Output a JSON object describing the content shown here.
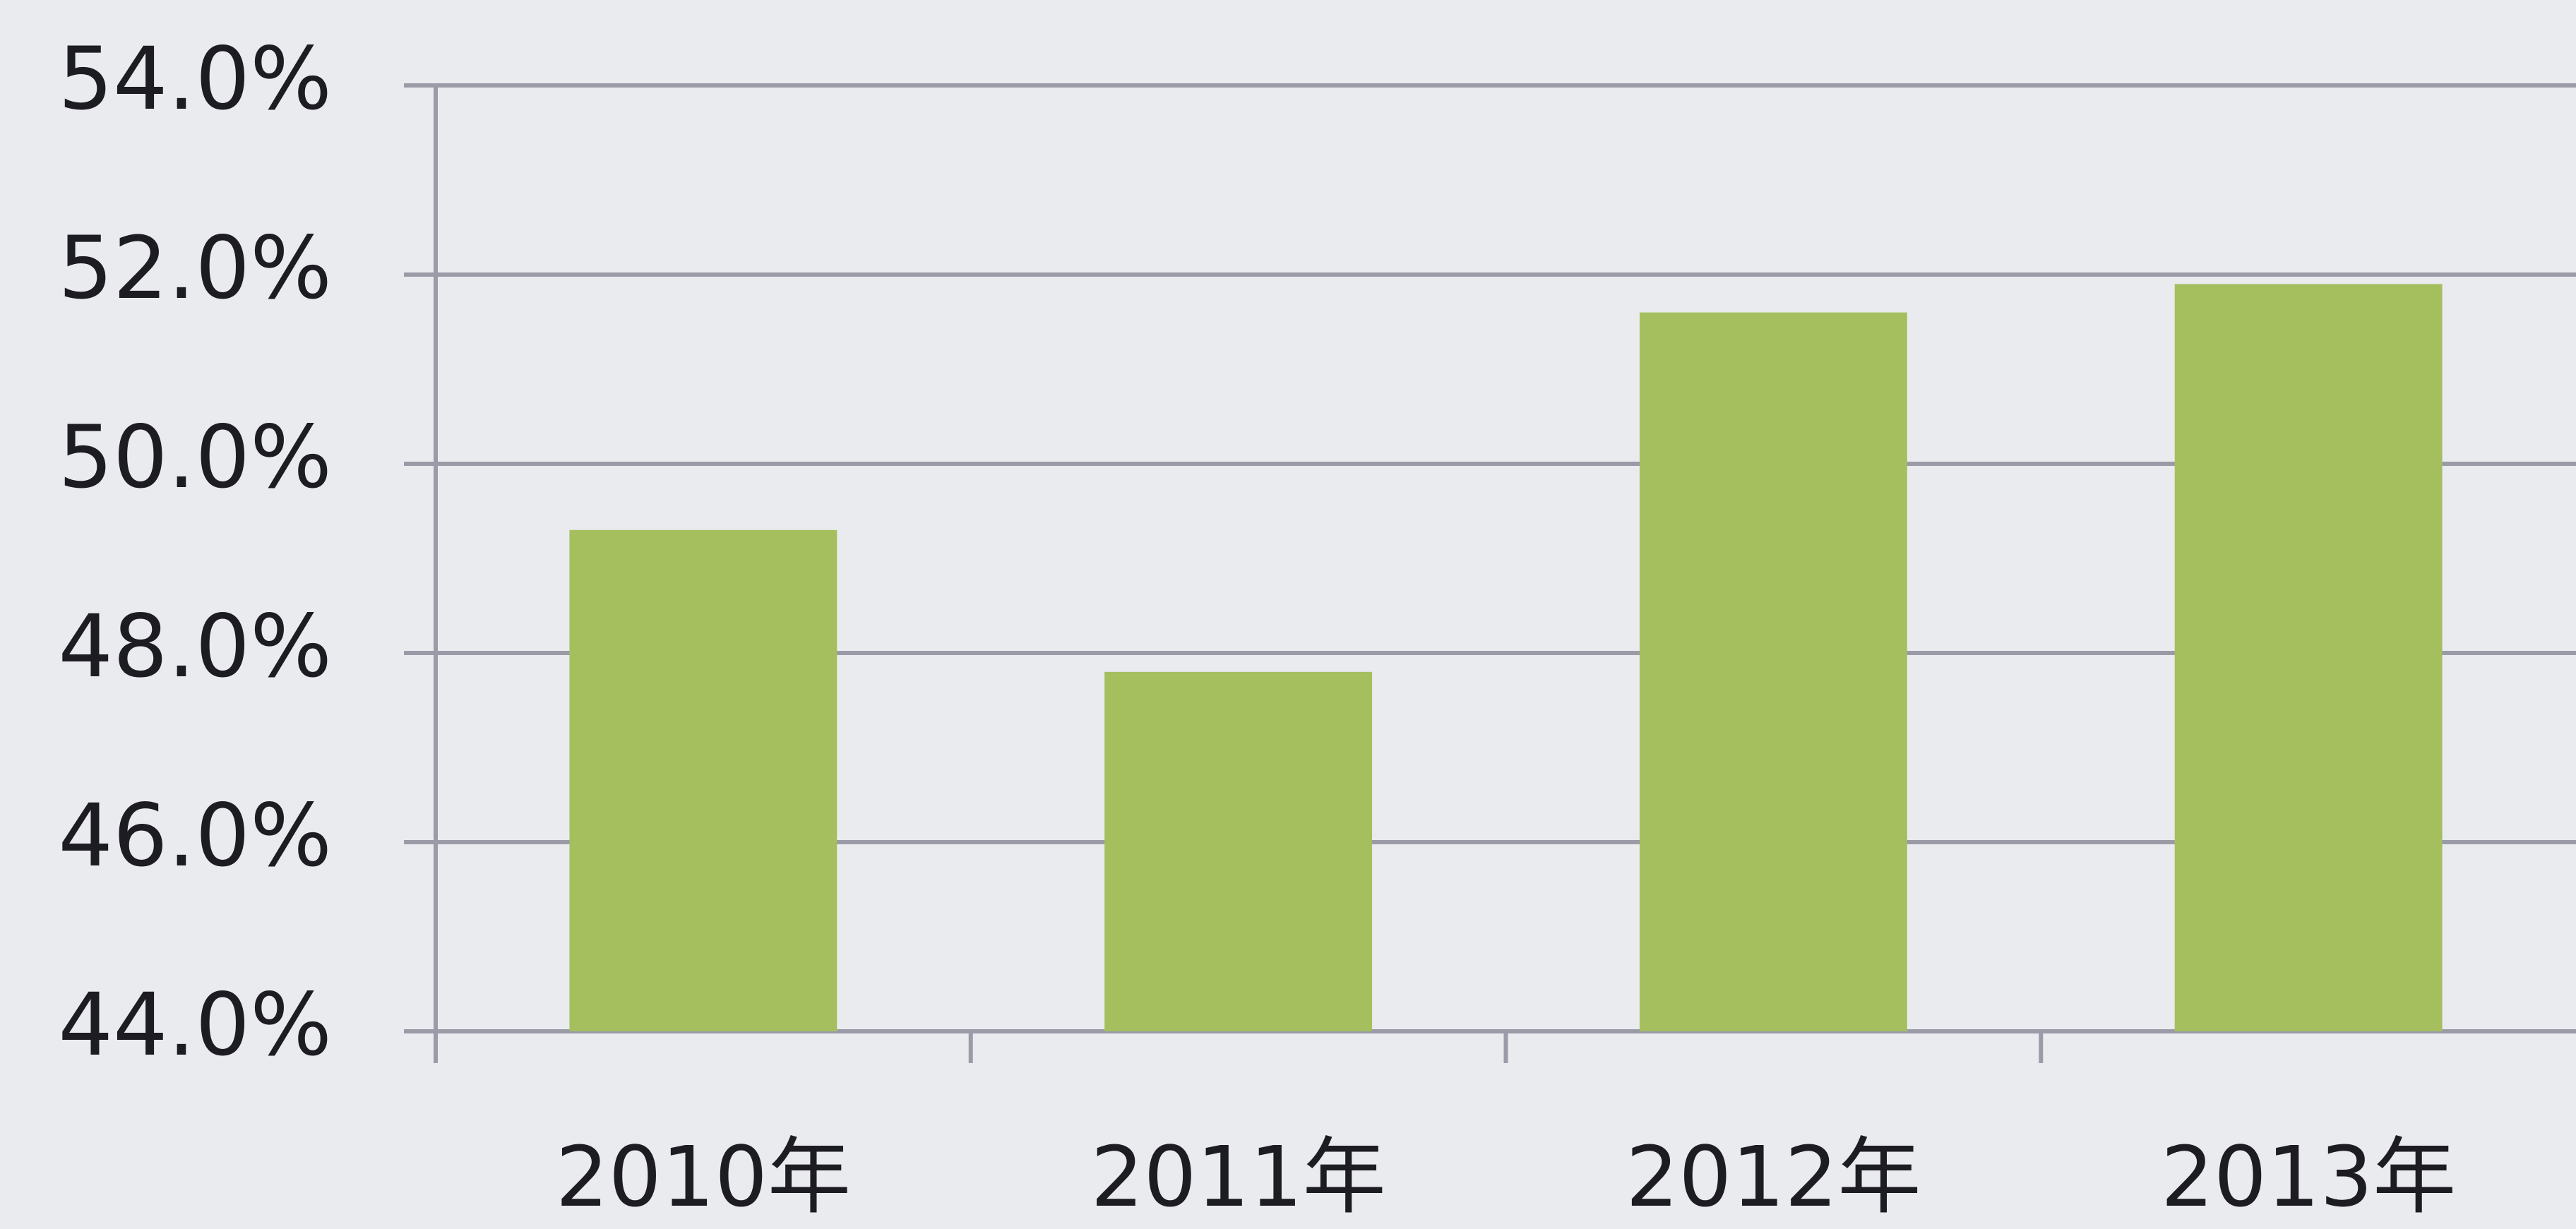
{
  "chart_data": {
    "type": "bar",
    "categories": [
      "2010年",
      "2011年",
      "2012年",
      "2013年"
    ],
    "values": [
      49.3,
      47.8,
      51.6,
      51.9
    ],
    "color": "#a5bf5e",
    "ylim": [
      44,
      54
    ],
    "yticks": [
      {
        "value": 44,
        "label": "44.0%"
      },
      {
        "value": 46,
        "label": "46.0%"
      },
      {
        "value": 48,
        "label": "48.0%"
      },
      {
        "value": 50,
        "label": "50.0%"
      },
      {
        "value": 52,
        "label": "52.0%"
      },
      {
        "value": 54,
        "label": "54.0%"
      }
    ],
    "grid": true
  }
}
